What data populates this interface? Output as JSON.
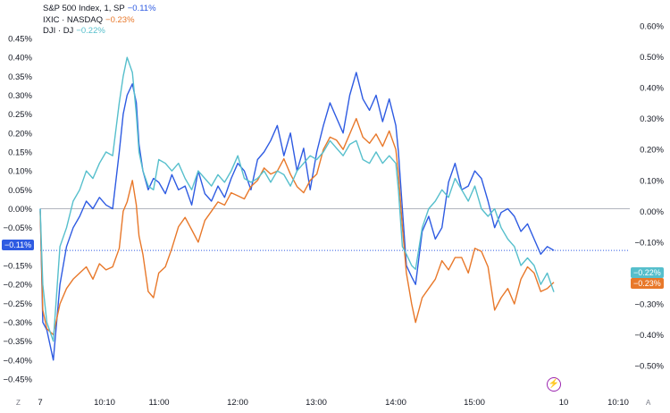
{
  "legend": [
    {
      "symbol": "S&P 500 Index, 1, SP",
      "change": "−0.11%",
      "color": "#2e5be2"
    },
    {
      "symbol": "IXIC · NASDAQ",
      "change": "−0.23%",
      "color": "#e8782a"
    },
    {
      "symbol": "DJI · DJ",
      "change": "−0.22%",
      "color": "#56bfcc"
    }
  ],
  "badges": {
    "spx": "−0.11%",
    "dji": "−0.22%",
    "ixic": "−0.23%"
  },
  "corner": {
    "left": "Z",
    "right": "A"
  },
  "colors": {
    "spx": "#2e5be2",
    "ixic": "#e8782a",
    "dji": "#56bfcc",
    "zero_line": "#b2b5be",
    "current_line": "#2e5be2"
  },
  "chart_data": {
    "type": "line",
    "x_tick_labels": [
      "7",
      "10:10",
      "11:00",
      "12:00",
      "13:00",
      "14:00",
      "15:00",
      "10",
      "10:10"
    ],
    "left_axis": {
      "ticks": [
        "0.45%",
        "0.40%",
        "0.35%",
        "0.30%",
        "0.25%",
        "0.20%",
        "0.15%",
        "0.10%",
        "0.05%",
        "0.00%",
        "−0.05%",
        "−0.10%",
        "−0.15%",
        "−0.20%",
        "−0.25%",
        "−0.30%",
        "−0.35%",
        "−0.40%",
        "−0.45%"
      ],
      "range": [
        -0.45,
        0.45
      ]
    },
    "right_axis": {
      "ticks": [
        "0.60%",
        "0.50%",
        "0.40%",
        "0.30%",
        "0.20%",
        "0.10%",
        "0.00%",
        "−0.10%",
        "−0.20%",
        "−0.30%",
        "−0.40%",
        "−0.50%"
      ],
      "range": [
        -0.5,
        0.6
      ]
    },
    "time_range": [
      "9:30",
      "16:00"
    ],
    "series": [
      {
        "name": "S&P 500 Index, 1, SP",
        "axis": "left",
        "key": "spx",
        "x": [
          "9:30",
          "9:32",
          "9:35",
          "9:40",
          "9:45",
          "9:50",
          "9:55",
          "10:00",
          "10:05",
          "10:10",
          "10:15",
          "10:20",
          "10:25",
          "10:30",
          "10:33",
          "10:36",
          "10:40",
          "10:43",
          "10:45",
          "10:48",
          "10:52",
          "10:56",
          "11:00",
          "11:05",
          "11:10",
          "11:15",
          "11:20",
          "11:25",
          "11:30",
          "11:35",
          "11:40",
          "11:45",
          "11:50",
          "11:55",
          "12:00",
          "12:05",
          "12:10",
          "12:15",
          "12:20",
          "12:25",
          "12:30",
          "12:35",
          "12:40",
          "12:45",
          "12:50",
          "12:55",
          "13:00",
          "13:05",
          "13:10",
          "13:15",
          "13:20",
          "13:25",
          "13:30",
          "13:35",
          "13:40",
          "13:45",
          "13:50",
          "13:55",
          "14:00",
          "14:02",
          "14:05",
          "14:08",
          "14:12",
          "14:15",
          "14:20",
          "14:25",
          "14:30",
          "14:35",
          "14:40",
          "14:45",
          "14:50",
          "14:55",
          "15:00",
          "15:05",
          "15:10",
          "15:15",
          "15:20",
          "15:25",
          "15:30",
          "15:35",
          "15:40",
          "15:45",
          "15:50",
          "15:55",
          "16:00"
        ],
        "y": [
          0.0,
          -0.3,
          -0.32,
          -0.4,
          -0.2,
          -0.1,
          -0.05,
          -0.02,
          0.02,
          0.0,
          0.03,
          0.01,
          0.0,
          0.15,
          0.25,
          0.3,
          0.33,
          0.28,
          0.17,
          0.1,
          0.05,
          0.08,
          0.07,
          0.04,
          0.09,
          0.05,
          0.06,
          0.01,
          0.1,
          0.04,
          0.02,
          0.06,
          0.03,
          0.08,
          0.12,
          0.1,
          0.05,
          0.13,
          0.15,
          0.18,
          0.22,
          0.14,
          0.2,
          0.1,
          0.16,
          0.05,
          0.15,
          0.22,
          0.28,
          0.24,
          0.2,
          0.3,
          0.36,
          0.29,
          0.26,
          0.3,
          0.23,
          0.29,
          0.22,
          0.15,
          0.0,
          -0.15,
          -0.18,
          -0.2,
          -0.06,
          -0.02,
          -0.08,
          -0.05,
          0.07,
          0.12,
          0.05,
          0.06,
          0.1,
          0.08,
          0.02,
          -0.05,
          -0.01,
          0.0,
          -0.02,
          -0.06,
          -0.04,
          -0.08,
          -0.12,
          -0.1,
          -0.11
        ]
      },
      {
        "name": "IXIC · NASDAQ",
        "axis": "right",
        "key": "ixic",
        "x": [
          "9:30",
          "9:32",
          "9:35",
          "9:40",
          "9:45",
          "9:50",
          "9:55",
          "10:00",
          "10:05",
          "10:10",
          "10:15",
          "10:20",
          "10:25",
          "10:30",
          "10:33",
          "10:36",
          "10:40",
          "10:43",
          "10:45",
          "10:48",
          "10:52",
          "10:56",
          "11:00",
          "11:05",
          "11:10",
          "11:15",
          "11:20",
          "11:25",
          "11:30",
          "11:35",
          "11:40",
          "11:45",
          "11:50",
          "11:55",
          "12:00",
          "12:05",
          "12:10",
          "12:15",
          "12:20",
          "12:25",
          "12:30",
          "12:35",
          "12:40",
          "12:45",
          "12:50",
          "12:55",
          "13:00",
          "13:05",
          "13:10",
          "13:15",
          "13:20",
          "13:25",
          "13:30",
          "13:35",
          "13:40",
          "13:45",
          "13:50",
          "13:55",
          "14:00",
          "14:02",
          "14:05",
          "14:08",
          "14:12",
          "14:15",
          "14:20",
          "14:25",
          "14:30",
          "14:35",
          "14:40",
          "14:45",
          "14:50",
          "14:55",
          "15:00",
          "15:05",
          "15:10",
          "15:15",
          "15:20",
          "15:25",
          "15:30",
          "15:35",
          "15:40",
          "15:45",
          "15:50",
          "15:55",
          "16:00"
        ],
        "y": [
          0.0,
          -0.32,
          -0.38,
          -0.4,
          -0.3,
          -0.25,
          -0.22,
          -0.2,
          -0.18,
          -0.22,
          -0.17,
          -0.19,
          -0.18,
          -0.12,
          0.0,
          0.03,
          0.1,
          0.02,
          -0.08,
          -0.14,
          -0.26,
          -0.28,
          -0.2,
          -0.18,
          -0.12,
          -0.05,
          -0.02,
          -0.06,
          -0.1,
          -0.03,
          0.0,
          0.03,
          0.02,
          0.06,
          0.05,
          0.04,
          0.08,
          0.1,
          0.14,
          0.12,
          0.13,
          0.17,
          0.12,
          0.08,
          0.06,
          0.1,
          0.12,
          0.2,
          0.24,
          0.23,
          0.2,
          0.25,
          0.3,
          0.24,
          0.22,
          0.25,
          0.21,
          0.26,
          0.2,
          0.12,
          -0.05,
          -0.2,
          -0.3,
          -0.36,
          -0.28,
          -0.25,
          -0.22,
          -0.16,
          -0.19,
          -0.15,
          -0.15,
          -0.2,
          -0.12,
          -0.13,
          -0.18,
          -0.32,
          -0.28,
          -0.25,
          -0.3,
          -0.22,
          -0.18,
          -0.2,
          -0.26,
          -0.25,
          -0.23
        ]
      },
      {
        "name": "DJI · DJ",
        "axis": "left",
        "key": "dji",
        "x": [
          "9:30",
          "9:32",
          "9:35",
          "9:40",
          "9:45",
          "9:50",
          "9:55",
          "10:00",
          "10:05",
          "10:10",
          "10:15",
          "10:20",
          "10:25",
          "10:30",
          "10:33",
          "10:36",
          "10:40",
          "10:43",
          "10:45",
          "10:48",
          "10:52",
          "10:56",
          "11:00",
          "11:05",
          "11:10",
          "11:15",
          "11:20",
          "11:25",
          "11:30",
          "11:35",
          "11:40",
          "11:45",
          "11:50",
          "11:55",
          "12:00",
          "12:05",
          "12:10",
          "12:15",
          "12:20",
          "12:25",
          "12:30",
          "12:35",
          "12:40",
          "12:45",
          "12:50",
          "12:55",
          "13:00",
          "13:05",
          "13:10",
          "13:15",
          "13:20",
          "13:25",
          "13:30",
          "13:35",
          "13:40",
          "13:45",
          "13:50",
          "13:55",
          "14:00",
          "14:02",
          "14:05",
          "14:08",
          "14:12",
          "14:15",
          "14:20",
          "14:25",
          "14:30",
          "14:35",
          "14:40",
          "14:45",
          "14:50",
          "14:55",
          "15:00",
          "15:05",
          "15:10",
          "15:15",
          "15:20",
          "15:25",
          "15:30",
          "15:35",
          "15:40",
          "15:45",
          "15:50",
          "15:55",
          "16:00"
        ],
        "y": [
          0.0,
          -0.2,
          -0.3,
          -0.35,
          -0.1,
          -0.05,
          0.02,
          0.05,
          0.1,
          0.08,
          0.12,
          0.15,
          0.14,
          0.28,
          0.35,
          0.4,
          0.36,
          0.25,
          0.15,
          0.1,
          0.06,
          0.05,
          0.13,
          0.12,
          0.1,
          0.12,
          0.08,
          0.05,
          0.1,
          0.08,
          0.06,
          0.09,
          0.07,
          0.1,
          0.14,
          0.08,
          0.07,
          0.08,
          0.1,
          0.07,
          0.1,
          0.09,
          0.06,
          0.1,
          0.12,
          0.14,
          0.13,
          0.15,
          0.18,
          0.16,
          0.14,
          0.17,
          0.18,
          0.13,
          0.12,
          0.15,
          0.12,
          0.14,
          0.12,
          0.05,
          -0.1,
          -0.12,
          -0.15,
          -0.16,
          -0.05,
          0.0,
          0.02,
          0.05,
          0.03,
          0.08,
          0.05,
          0.02,
          0.06,
          0.0,
          -0.02,
          0.0,
          -0.05,
          -0.08,
          -0.1,
          -0.15,
          -0.13,
          -0.15,
          -0.2,
          -0.17,
          -0.22
        ]
      }
    ]
  }
}
